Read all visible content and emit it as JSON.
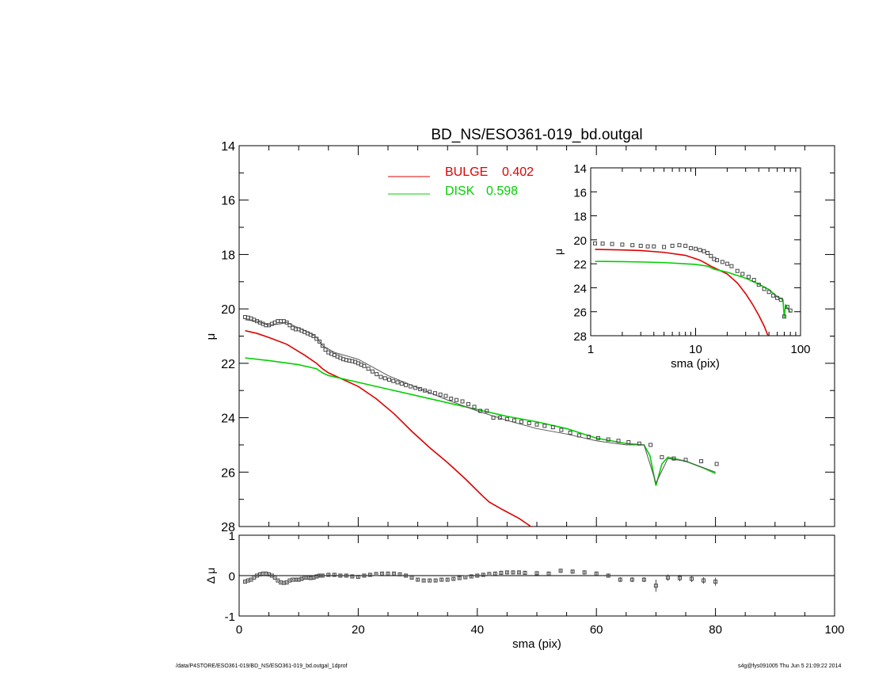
{
  "chart_data": [
    {
      "id": "main-profile",
      "type": "line",
      "title": "BD_NS/ESO361-019_bd.outgal",
      "xlabel": "",
      "ylabel": "μ",
      "xlim": [
        0,
        100
      ],
      "ylim": [
        28,
        14
      ],
      "y_inverted": true,
      "y_ticks": [
        "14",
        "16",
        "18",
        "20",
        "22",
        "24",
        "26",
        "28"
      ],
      "legend": {
        "placement": "top",
        "entries": [
          {
            "label": "BULGE",
            "value": "0.402",
            "color": "#e00000"
          },
          {
            "label": "DISK",
            "value": "0.598",
            "color": "#00d000"
          }
        ]
      },
      "series": [
        {
          "name": "BULGE",
          "color": "#e00000",
          "style": "line",
          "x": [
            1,
            3,
            5,
            8,
            11,
            13,
            14,
            15,
            17,
            20,
            23,
            26,
            29,
            32,
            35,
            38,
            41,
            42,
            44,
            47,
            49
          ],
          "y": [
            20.8,
            20.9,
            21.05,
            21.3,
            21.7,
            22.0,
            22.2,
            22.35,
            22.55,
            22.85,
            23.3,
            23.85,
            24.5,
            25.1,
            25.65,
            26.25,
            26.9,
            27.1,
            27.35,
            27.7,
            28.0
          ]
        },
        {
          "name": "DISK",
          "color": "#00d000",
          "style": "line",
          "x": [
            1,
            5,
            10,
            13,
            14,
            15,
            20,
            25,
            30,
            35,
            40,
            43,
            45,
            50,
            55,
            60,
            65,
            68,
            69,
            70,
            71,
            72,
            75,
            78,
            80
          ],
          "y": [
            21.8,
            21.9,
            22.05,
            22.2,
            22.35,
            22.45,
            22.7,
            22.95,
            23.2,
            23.45,
            23.7,
            23.85,
            23.95,
            24.15,
            24.4,
            24.75,
            24.95,
            25.0,
            25.4,
            26.5,
            25.7,
            25.45,
            25.6,
            25.85,
            26.05
          ]
        },
        {
          "name": "",
          "color": "#555555",
          "style": "line",
          "x": [
            1,
            3,
            5,
            7,
            8,
            10,
            12,
            13,
            14,
            16,
            20,
            25,
            30,
            35,
            40,
            45,
            50,
            55,
            60,
            65,
            68,
            70,
            72,
            75,
            80
          ],
          "y": [
            20.4,
            20.45,
            20.6,
            20.55,
            20.5,
            20.7,
            20.9,
            21.05,
            21.35,
            21.6,
            21.85,
            22.45,
            22.9,
            23.35,
            23.75,
            24.1,
            24.4,
            24.6,
            24.85,
            25.0,
            25.0,
            26.4,
            25.5,
            25.6,
            26.0
          ]
        },
        {
          "name": "",
          "color": "#444444",
          "style": "markers",
          "x": [
            1,
            1.5,
            2,
            2.5,
            3,
            3.5,
            4,
            4.5,
            5,
            5.5,
            6,
            6.5,
            7,
            7.5,
            8,
            8.5,
            9,
            9.5,
            10,
            10.5,
            11,
            11.5,
            12,
            12.5,
            13,
            13.5,
            14,
            14.5,
            15,
            15.5,
            16,
            16.5,
            17,
            17.5,
            18,
            18.5,
            19,
            19.5,
            20,
            20.5,
            21,
            21.7,
            22.4,
            23.1,
            23.8,
            24.5,
            25.2,
            25.9,
            26.6,
            27.3,
            28,
            28.8,
            29.6,
            30.4,
            31.2,
            32,
            32.9,
            33.8,
            34.7,
            35.6,
            36.5,
            37.5,
            38.5,
            39.5,
            40.5,
            41.6,
            42.7,
            43.8,
            45,
            46.2,
            47.4,
            48.7,
            50,
            51.3,
            52.7,
            54.1,
            55.6,
            57.1,
            58.7,
            60.3,
            62,
            63.7,
            65.4,
            67.2,
            69.1,
            71,
            73,
            75,
            77.6,
            80.2
          ],
          "y": [
            20.3,
            20.32,
            20.35,
            20.4,
            20.45,
            20.5,
            20.55,
            20.6,
            20.6,
            20.55,
            20.5,
            20.45,
            20.45,
            20.45,
            20.5,
            20.6,
            20.7,
            20.75,
            20.75,
            20.8,
            20.85,
            20.9,
            20.95,
            21.0,
            21.1,
            21.2,
            21.35,
            21.5,
            21.6,
            21.65,
            21.7,
            21.75,
            21.8,
            21.85,
            21.88,
            21.9,
            21.92,
            21.95,
            22.0,
            22.05,
            22.1,
            22.2,
            22.3,
            22.4,
            22.5,
            22.55,
            22.6,
            22.65,
            22.7,
            22.75,
            22.8,
            22.85,
            22.9,
            22.95,
            23.0,
            23.05,
            23.1,
            23.15,
            23.2,
            23.3,
            23.35,
            23.4,
            23.5,
            23.6,
            23.75,
            23.75,
            24.0,
            24.0,
            24.05,
            24.1,
            24.15,
            24.2,
            24.25,
            24.3,
            24.35,
            24.45,
            24.55,
            24.65,
            24.7,
            24.75,
            24.8,
            24.85,
            24.9,
            24.95,
            25.0,
            25.45,
            25.5,
            25.55,
            25.6,
            25.7
          ]
        }
      ]
    },
    {
      "id": "residuals",
      "type": "scatter",
      "title": "",
      "xlabel": "sma (pix)",
      "ylabel": "Δ μ",
      "xlim": [
        0,
        100
      ],
      "ylim": [
        -1,
        1
      ],
      "x_ticks": [
        "0",
        "20",
        "40",
        "60",
        "80",
        "100"
      ],
      "y_ticks": [
        "1",
        "0",
        "-1"
      ],
      "series": [
        {
          "name": "",
          "color": "#000000",
          "style": "line",
          "x": [
            1,
            100
          ],
          "y": [
            0,
            0
          ]
        },
        {
          "name": "",
          "color": "#444444",
          "style": "markers",
          "x": [
            1,
            1.5,
            2,
            2.5,
            3,
            3.5,
            4,
            4.5,
            5,
            5.5,
            6,
            6.5,
            7,
            7.5,
            8,
            8.5,
            9,
            9.5,
            10,
            10.5,
            11,
            11.5,
            12,
            12.5,
            13,
            13.5,
            14,
            15,
            16,
            17,
            18,
            19,
            20,
            21,
            22,
            23,
            24,
            25,
            26,
            27,
            28,
            29,
            30,
            31,
            32,
            33,
            34,
            35,
            36,
            37,
            38,
            39,
            40,
            41,
            42,
            43,
            44,
            45,
            46,
            47,
            48,
            50,
            52,
            54,
            56,
            58,
            60,
            62,
            64,
            66,
            68,
            70,
            72,
            74,
            76,
            78,
            80
          ],
          "y": [
            -0.15,
            -0.12,
            -0.1,
            -0.05,
            0.0,
            0.03,
            0.05,
            0.05,
            0.03,
            0.0,
            -0.05,
            -0.12,
            -0.17,
            -0.18,
            -0.17,
            -0.12,
            -0.1,
            -0.1,
            -0.1,
            -0.08,
            -0.05,
            -0.05,
            -0.06,
            -0.05,
            -0.02,
            0.0,
            0.0,
            0.02,
            0.02,
            0.0,
            0.0,
            -0.02,
            -0.03,
            0.0,
            0.02,
            0.04,
            0.05,
            0.05,
            0.05,
            0.03,
            0.0,
            -0.05,
            -0.1,
            -0.12,
            -0.12,
            -0.12,
            -0.1,
            -0.1,
            -0.08,
            -0.06,
            -0.04,
            -0.02,
            0.0,
            0.02,
            0.04,
            0.05,
            0.07,
            0.08,
            0.08,
            0.08,
            0.07,
            0.06,
            0.05,
            0.12,
            0.1,
            0.08,
            0.05,
            0.0,
            -0.1,
            -0.1,
            -0.1,
            -0.25,
            -0.05,
            -0.06,
            -0.08,
            -0.12,
            -0.15
          ],
          "err": [
            0.02,
            0.02,
            0.02,
            0.02,
            0.02,
            0.02,
            0.02,
            0.02,
            0.02,
            0.02,
            0.02,
            0.02,
            0.02,
            0.02,
            0.02,
            0.02,
            0.02,
            0.03,
            0.03,
            0.03,
            0.03,
            0.03,
            0.03,
            0.03,
            0.03,
            0.03,
            0.03,
            0.03,
            0.03,
            0.03,
            0.03,
            0.03,
            0.03,
            0.03,
            0.03,
            0.03,
            0.03,
            0.03,
            0.03,
            0.03,
            0.03,
            0.03,
            0.03,
            0.03,
            0.03,
            0.03,
            0.03,
            0.03,
            0.03,
            0.03,
            0.03,
            0.03,
            0.03,
            0.04,
            0.04,
            0.04,
            0.04,
            0.04,
            0.04,
            0.04,
            0.04,
            0.04,
            0.05,
            0.05,
            0.05,
            0.05,
            0.05,
            0.05,
            0.06,
            0.06,
            0.06,
            0.15,
            0.08,
            0.08,
            0.08,
            0.08,
            0.1
          ]
        }
      ]
    },
    {
      "id": "inset-profile",
      "type": "line",
      "title": "",
      "xlabel": "sma (pix)",
      "ylabel": "μ",
      "xscale": "log",
      "xlim": [
        1,
        100
      ],
      "ylim": [
        28,
        14
      ],
      "y_inverted": true,
      "x_ticks": [
        "1",
        "10",
        "100"
      ],
      "y_ticks": [
        "14",
        "16",
        "18",
        "20",
        "22",
        "24",
        "26",
        "28"
      ],
      "series": [
        {
          "name": "BULGE",
          "color": "#e00000",
          "style": "line",
          "x": [
            1.1,
            2,
            3,
            5,
            8,
            11,
            14,
            17,
            20,
            25,
            30,
            35,
            40,
            45,
            49
          ],
          "y": [
            20.8,
            20.85,
            20.9,
            21.05,
            21.3,
            21.7,
            22.2,
            22.55,
            22.85,
            23.6,
            24.5,
            25.4,
            26.3,
            27.2,
            28.0
          ]
        },
        {
          "name": "DISK",
          "color": "#00d000",
          "style": "line",
          "x": [
            1.1,
            2,
            3,
            5,
            8,
            10,
            13,
            15,
            20,
            30,
            40,
            50,
            60,
            68,
            70,
            72,
            80
          ],
          "y": [
            21.8,
            21.82,
            21.85,
            21.9,
            22.0,
            22.05,
            22.2,
            22.45,
            22.7,
            23.2,
            23.7,
            24.15,
            24.75,
            25.0,
            26.5,
            25.45,
            26.05
          ]
        },
        {
          "name": "",
          "color": "#444444",
          "style": "markers",
          "x": [
            1.1,
            1.3,
            1.6,
            2,
            2.5,
            3,
            3.5,
            4,
            5,
            6,
            7,
            8,
            9,
            10,
            11,
            12,
            13,
            14,
            15,
            16,
            18,
            20,
            22,
            25,
            28,
            32,
            36,
            40,
            45,
            50,
            55,
            60,
            65,
            70,
            75,
            80
          ],
          "y": [
            20.3,
            20.32,
            20.35,
            20.4,
            20.45,
            20.5,
            20.55,
            20.55,
            20.6,
            20.5,
            20.45,
            20.5,
            20.7,
            20.75,
            20.85,
            20.95,
            21.1,
            21.35,
            21.6,
            21.7,
            21.85,
            22.0,
            22.2,
            22.6,
            22.85,
            23.1,
            23.35,
            23.75,
            24.1,
            24.35,
            24.65,
            24.85,
            25.0,
            26.4,
            25.6,
            25.9
          ]
        }
      ]
    }
  ],
  "footer": {
    "path": "/data/P4STORE/ESO361-019/BD_NS/ESO361-019_bd.outgal_1dprof",
    "stamp": "s4g@fys091005  Thu Jun  5 21:09:22 2014"
  }
}
